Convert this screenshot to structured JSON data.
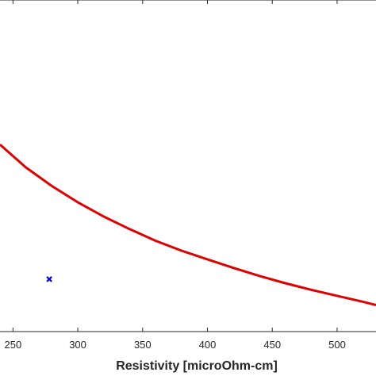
{
  "chart_data": {
    "type": "line",
    "title": "",
    "xlabel": "Resistivity [microOhm-cm]",
    "ylabel": "",
    "xlim": [
      240,
      530
    ],
    "ylim": [
      0,
      1
    ],
    "x_ticks": [
      "250",
      "300",
      "350",
      "400",
      "450",
      "500"
    ],
    "x_tick_values": [
      250,
      300,
      350,
      400,
      450,
      500
    ],
    "grid": false,
    "legend": "none",
    "series": [
      {
        "type": "line",
        "color": "#e00000",
        "x": [
          240,
          260,
          280,
          300,
          320,
          340,
          360,
          380,
          400,
          420,
          440,
          460,
          480,
          500,
          520,
          530
        ],
        "y": [
          0.564,
          0.495,
          0.439,
          0.39,
          0.347,
          0.309,
          0.274,
          0.244,
          0.218,
          0.192,
          0.168,
          0.146,
          0.126,
          0.108,
          0.09,
          0.08
        ]
      },
      {
        "type": "scatter",
        "marker": "x",
        "color": "#0000e0",
        "x": [
          278
        ],
        "y": [
          0.158
        ]
      }
    ]
  }
}
